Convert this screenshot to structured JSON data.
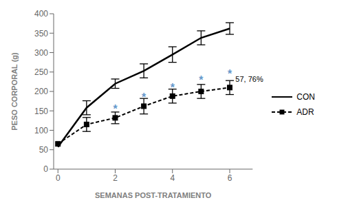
{
  "chart_data": {
    "type": "line",
    "x": [
      0,
      1,
      2,
      3,
      4,
      5,
      6
    ],
    "series": [
      {
        "name": "CON",
        "color": "#000000",
        "line_style": "solid",
        "marker": "none",
        "values": [
          57,
          158,
          220,
          253,
          295,
          338,
          362
        ],
        "errors": [
          0,
          18,
          12,
          18,
          20,
          18,
          15
        ]
      },
      {
        "name": "ADR",
        "color": "#000000",
        "line_style": "dashed",
        "marker": "square",
        "values": [
          65,
          115,
          132,
          162,
          188,
          200,
          210
        ],
        "errors": [
          0,
          18,
          15,
          20,
          18,
          18,
          18
        ]
      }
    ],
    "xlabel": "SEMANAS POST-TRATAMIENTO",
    "ylabel": "PESO CORPORAL (g)",
    "xlim": [
      -0.15,
      6.8
    ],
    "ylim": [
      0,
      400
    ],
    "xticks": [
      0,
      2,
      4,
      6
    ],
    "yticks": [
      0,
      50,
      100,
      150,
      200,
      250,
      300,
      350,
      400
    ],
    "annotations": [
      {
        "text": "*",
        "x": 2,
        "y": 155,
        "color": "#6699cc"
      },
      {
        "text": "*",
        "x": 3,
        "y": 185,
        "color": "#6699cc"
      },
      {
        "text": "*",
        "x": 4,
        "y": 210,
        "color": "#6699cc"
      },
      {
        "text": "*",
        "x": 5,
        "y": 230,
        "color": "#6699cc"
      },
      {
        "text": "*",
        "x": 6,
        "y": 245,
        "color": "#6699cc"
      },
      {
        "text": "57, 76%",
        "x": 6.2,
        "y": 232
      }
    ],
    "legend": "right",
    "grid": false
  }
}
